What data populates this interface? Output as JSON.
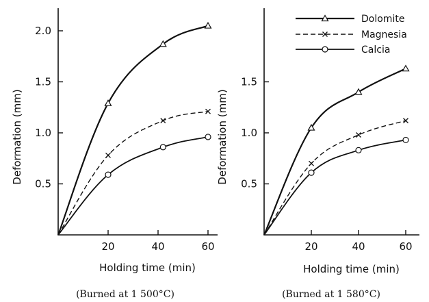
{
  "chart_data": [
    {
      "type": "line",
      "xlabel": "Holding time (min)",
      "ylabel": "Deformation (mm)",
      "caption": "(Burned at 1 500°C)",
      "xlim": [
        0,
        63
      ],
      "ylim": [
        0,
        2.2
      ],
      "xticks": [
        20,
        40,
        60
      ],
      "yticks": [
        0.5,
        1.0,
        1.5,
        2.0
      ],
      "ytick_labels": [
        "0.5",
        "1.0",
        "1.5",
        "2.0"
      ],
      "grid": false,
      "series": [
        {
          "name": "Dolomite",
          "marker": "triangle",
          "line": "solid-thick",
          "x": [
            0,
            20,
            42,
            60
          ],
          "y": [
            0.0,
            1.29,
            1.87,
            2.05
          ]
        },
        {
          "name": "Magnesia",
          "marker": "cross",
          "line": "dashed",
          "x": [
            0,
            20,
            42,
            60
          ],
          "y": [
            0.0,
            0.78,
            1.12,
            1.21
          ]
        },
        {
          "name": "Calcia",
          "marker": "circle",
          "line": "solid",
          "x": [
            0,
            20,
            42,
            60
          ],
          "y": [
            0.0,
            0.59,
            0.86,
            0.96
          ]
        }
      ]
    },
    {
      "type": "line",
      "xlabel": "Holding time (min)",
      "ylabel": "Deformation (mm)",
      "caption": "(Burned at 1 580°C)",
      "xlim": [
        0,
        63
      ],
      "ylim": [
        0,
        2.2
      ],
      "xticks": [
        20,
        40,
        60
      ],
      "yticks": [
        0.5,
        1.0,
        1.5
      ],
      "ytick_labels": [
        "0.5",
        "1.0",
        "1.5"
      ],
      "grid": false,
      "legend": {
        "placement": "top-right",
        "entries": [
          "Dolomite",
          "Magnesia",
          "Calcia"
        ]
      },
      "series": [
        {
          "name": "Dolomite",
          "marker": "triangle",
          "line": "solid-thick",
          "x": [
            0,
            20,
            40,
            60
          ],
          "y": [
            0.0,
            1.05,
            1.4,
            1.63
          ]
        },
        {
          "name": "Magnesia",
          "marker": "cross",
          "line": "dashed",
          "x": [
            0,
            20,
            40,
            60
          ],
          "y": [
            0.0,
            0.7,
            0.98,
            1.12
          ]
        },
        {
          "name": "Calcia",
          "marker": "circle",
          "line": "solid",
          "x": [
            0,
            20,
            40,
            60
          ],
          "y": [
            0.0,
            0.61,
            0.83,
            0.93
          ]
        }
      ]
    }
  ]
}
